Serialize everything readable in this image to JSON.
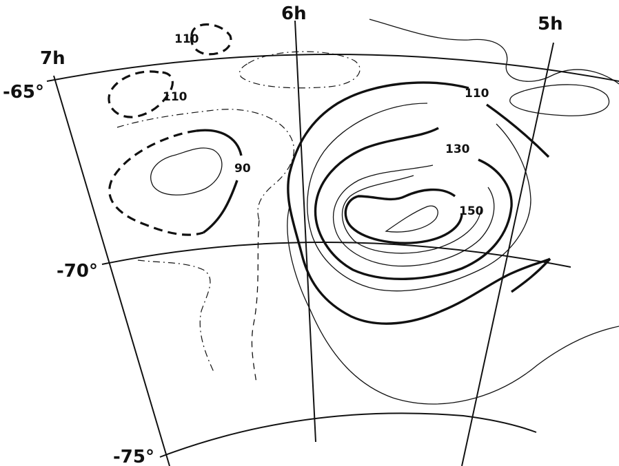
{
  "axes": {
    "ra": [
      "7h",
      "6h",
      "5h"
    ],
    "dec": [
      "-65°",
      "-70°",
      "-75°"
    ]
  },
  "contour_labels": [
    "110",
    "110",
    "90",
    "110",
    "130",
    "150"
  ]
}
